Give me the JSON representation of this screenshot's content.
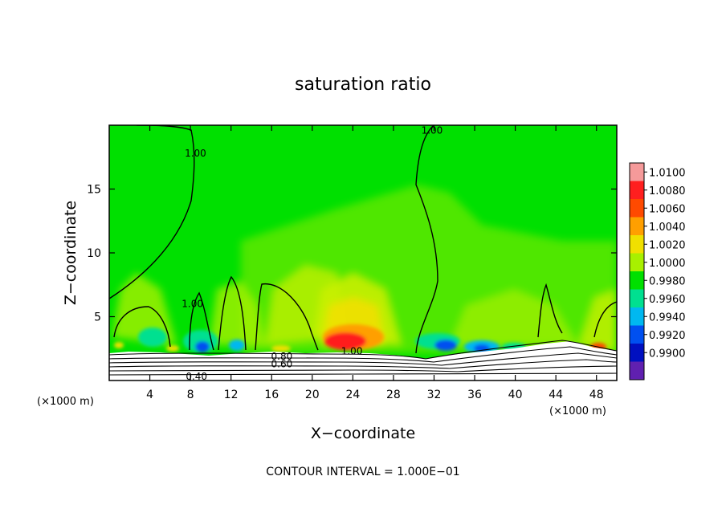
{
  "chart_data": {
    "type": "heatmap",
    "title": "saturation ratio",
    "xlabel": "X−coordinate",
    "ylabel": "Z−coordinate",
    "x_unit": "(×1000 m)",
    "x_unit_right": "(×1000 m)",
    "xlim": [
      0,
      50
    ],
    "ylim": [
      0,
      20
    ],
    "x_ticks": [
      4,
      8,
      12,
      16,
      20,
      24,
      28,
      32,
      36,
      40,
      44,
      48
    ],
    "y_ticks": [
      5,
      10,
      15
    ],
    "colorbar": {
      "levels": [
        "1.0100",
        "1.0080",
        "1.0060",
        "1.0040",
        "1.0020",
        "1.0000",
        "0.9980",
        "0.9960",
        "0.9940",
        "0.9920",
        "0.9900"
      ],
      "colors": [
        "#f59a9a",
        "#ff1f1f",
        "#ff4a00",
        "#ff9f00",
        "#f0e000",
        "#a8f000",
        "#00e000",
        "#00e090",
        "#00b8f0",
        "#0050f0",
        "#0010c0",
        "#6020b0"
      ]
    },
    "contour_labels": [
      {
        "text": "1.00",
        "x": 31.8,
        "y": 19.6
      },
      {
        "text": "1.00",
        "x": 8.5,
        "y": 17.8
      },
      {
        "text": "1.00",
        "x": 8.2,
        "y": 6.0
      },
      {
        "text": "1.00",
        "x": 23.9,
        "y": 2.3
      },
      {
        "text": "0.80",
        "x": 17.0,
        "y": 1.9
      },
      {
        "text": "0.60",
        "x": 17.0,
        "y": 1.3
      },
      {
        "text": "0.40",
        "x": 8.6,
        "y": 0.3
      }
    ],
    "footer": "CONTOUR INTERVAL = 1.000E−01"
  }
}
